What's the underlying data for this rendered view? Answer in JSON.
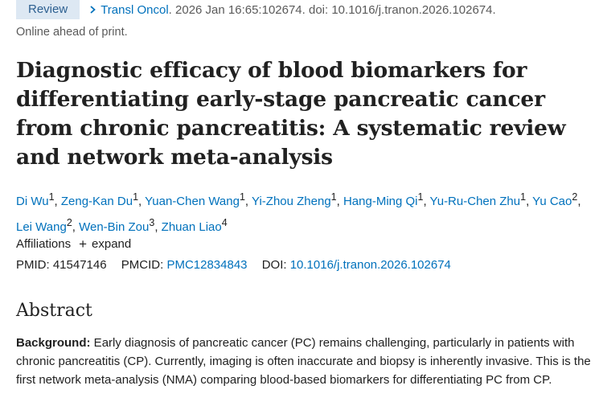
{
  "header": {
    "badge": "Review",
    "journal": "Transl Oncol",
    "citation_rest": ". 2026 Jan 16:65:102674. doi: 10.1016/j.tranon.2026.102674.",
    "status": "Online ahead of print."
  },
  "article": {
    "title": "Diagnostic efficacy of blood biomarkers for differentiating early-stage pancreatic cancer from chronic pancreatitis: A systematic review and network meta-analysis",
    "authors": [
      {
        "name": "Di Wu",
        "aff": "1"
      },
      {
        "name": "Zeng-Kan Du",
        "aff": "1"
      },
      {
        "name": "Yuan-Chen Wang",
        "aff": "1"
      },
      {
        "name": "Yi-Zhou Zheng",
        "aff": "1"
      },
      {
        "name": "Hang-Ming Qi",
        "aff": "1"
      },
      {
        "name": "Yu-Ru-Chen Zhu",
        "aff": "1"
      },
      {
        "name": "Yu Cao",
        "aff": "2"
      },
      {
        "name": "Lei Wang",
        "aff": "2"
      },
      {
        "name": "Wen-Bin Zou",
        "aff": "3"
      },
      {
        "name": "Zhuan Liao",
        "aff": "4"
      }
    ],
    "affiliations_label": "Affiliations",
    "expand_label": "expand",
    "pmid_label": "PMID:",
    "pmid": "41547146",
    "pmcid_label": "PMCID:",
    "pmcid": "PMC12834843",
    "doi_label": "DOI:",
    "doi": "10.1016/j.tranon.2026.102674"
  },
  "abstract": {
    "heading": "Abstract",
    "background_label": "Background:",
    "background_text": " Early diagnosis of pancreatic cancer (PC) remains challenging, particularly in patients with chronic pancreatitis (CP). Currently, imaging is often inaccurate and biopsy is inherently invasive. This is the first network meta-analysis (NMA) comparing blood-based biomarkers for differentiating PC from CP."
  },
  "colors": {
    "link": "#0071bc",
    "badge_bg": "#dde8f3",
    "text": "#212121",
    "muted": "#5a5a5a"
  }
}
